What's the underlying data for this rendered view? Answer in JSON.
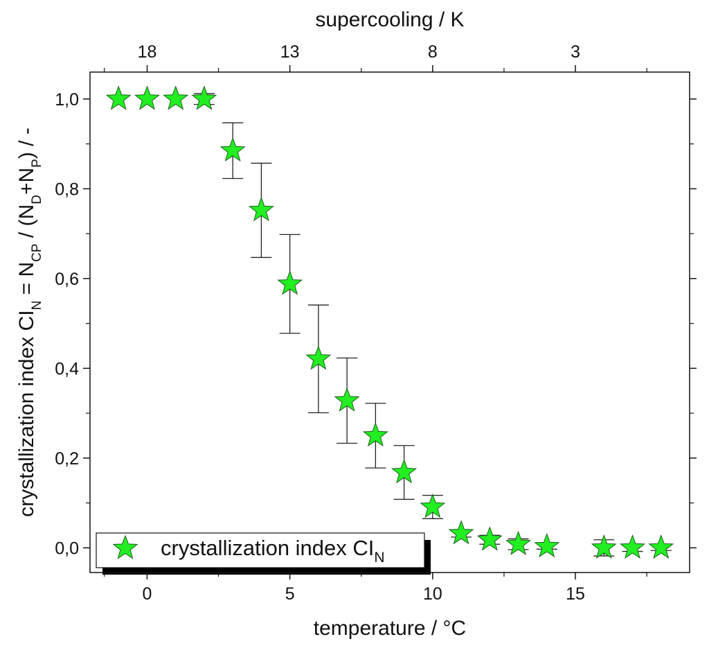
{
  "chart_data": {
    "type": "scatter",
    "title": "",
    "xlabel": "temperature / °C",
    "ylabel": {
      "parts": [
        {
          "text": "crystallization index CI"
        },
        {
          "text": "N",
          "sub": true
        },
        {
          "text": " = N"
        },
        {
          "text": "CP",
          "sub": true
        },
        {
          "text": " / (N"
        },
        {
          "text": "D",
          "sub": true
        },
        {
          "text": "+N"
        },
        {
          "text": "P",
          "sub": true
        },
        {
          "text": ") / -"
        }
      ]
    },
    "top_xlabel": "supercooling / K",
    "xlim": [
      -2,
      19
    ],
    "ylim": [
      -0.055,
      1.06
    ],
    "x_ticks": [
      0,
      5,
      10,
      15
    ],
    "x_tick_labels": [
      "0",
      "5",
      "10",
      "15"
    ],
    "y_ticks": [
      0.0,
      0.2,
      0.4,
      0.6,
      0.8,
      1.0
    ],
    "y_tick_labels": [
      "0,0",
      "0,2",
      "0,4",
      "0,6",
      "0,8",
      "1,0"
    ],
    "top_ticks_at_temperature": [
      0,
      5,
      10,
      15
    ],
    "top_tick_labels": [
      "18",
      "13",
      "8",
      "3"
    ],
    "series": [
      {
        "name": "crystallization index CI",
        "name_sub": "N",
        "marker": "star",
        "color": "#22ee22",
        "x": [
          -1,
          0,
          1,
          2,
          3,
          4,
          5,
          6,
          7,
          8,
          9,
          10,
          11,
          12,
          13,
          14,
          16,
          17,
          18
        ],
        "y": [
          1.0,
          1.0,
          1.0,
          1.0,
          0.885,
          0.752,
          0.588,
          0.421,
          0.328,
          0.25,
          0.168,
          0.091,
          0.032,
          0.018,
          0.008,
          0.003,
          0.0,
          0.0,
          0.0
        ],
        "yerr": [
          0,
          0,
          0,
          0.012,
          0.062,
          0.105,
          0.11,
          0.12,
          0.095,
          0.072,
          0.06,
          0.026,
          0.008,
          0.01,
          0.012,
          0.006,
          0.018,
          0.008,
          0.006
        ]
      }
    ],
    "legend": "bottom-left",
    "grid": false
  }
}
